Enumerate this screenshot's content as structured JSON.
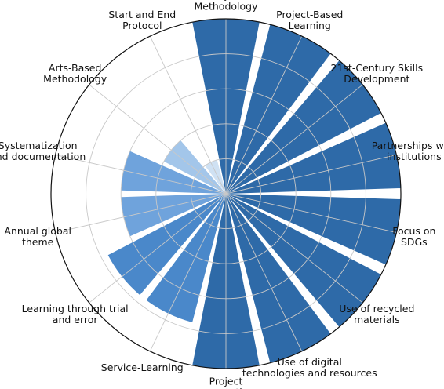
{
  "chart_data": {
    "type": "polar-bar",
    "title": "",
    "rlim": [
      0,
      5
    ],
    "rticks": [
      1,
      2,
      3,
      4,
      5
    ],
    "grid": true,
    "categories": [
      "Project\nMethodology",
      "Project-Based\nLearning",
      "21st-Century Skills\nDevelopment",
      "Partnerships with\ninstitutions",
      "Focus on\nSDGs",
      "Use of recycled\nmaterials",
      "Use of digital\ntechnologies and resources",
      "Project\npresentations",
      "Service-Learning",
      "Learning through trial\nand error",
      "Annual global\ntheme",
      "Systematization\nand documentation",
      "Arts-Based\nMethodology",
      "Start and End\nProtocol"
    ],
    "values": [
      5.0,
      5.0,
      5.0,
      5.0,
      5.0,
      5.0,
      5.0,
      5.0,
      3.8,
      3.8,
      3.0,
      3.0,
      2.0,
      1.0
    ],
    "colors": {
      "max": "#2e6aa8",
      "high": "#4a88ca",
      "mid": "#6fa3dc",
      "low": "#a3c6ea",
      "lowest": "#cfe1f3",
      "grid": "#c8c8c8",
      "frame": "#111111"
    }
  }
}
